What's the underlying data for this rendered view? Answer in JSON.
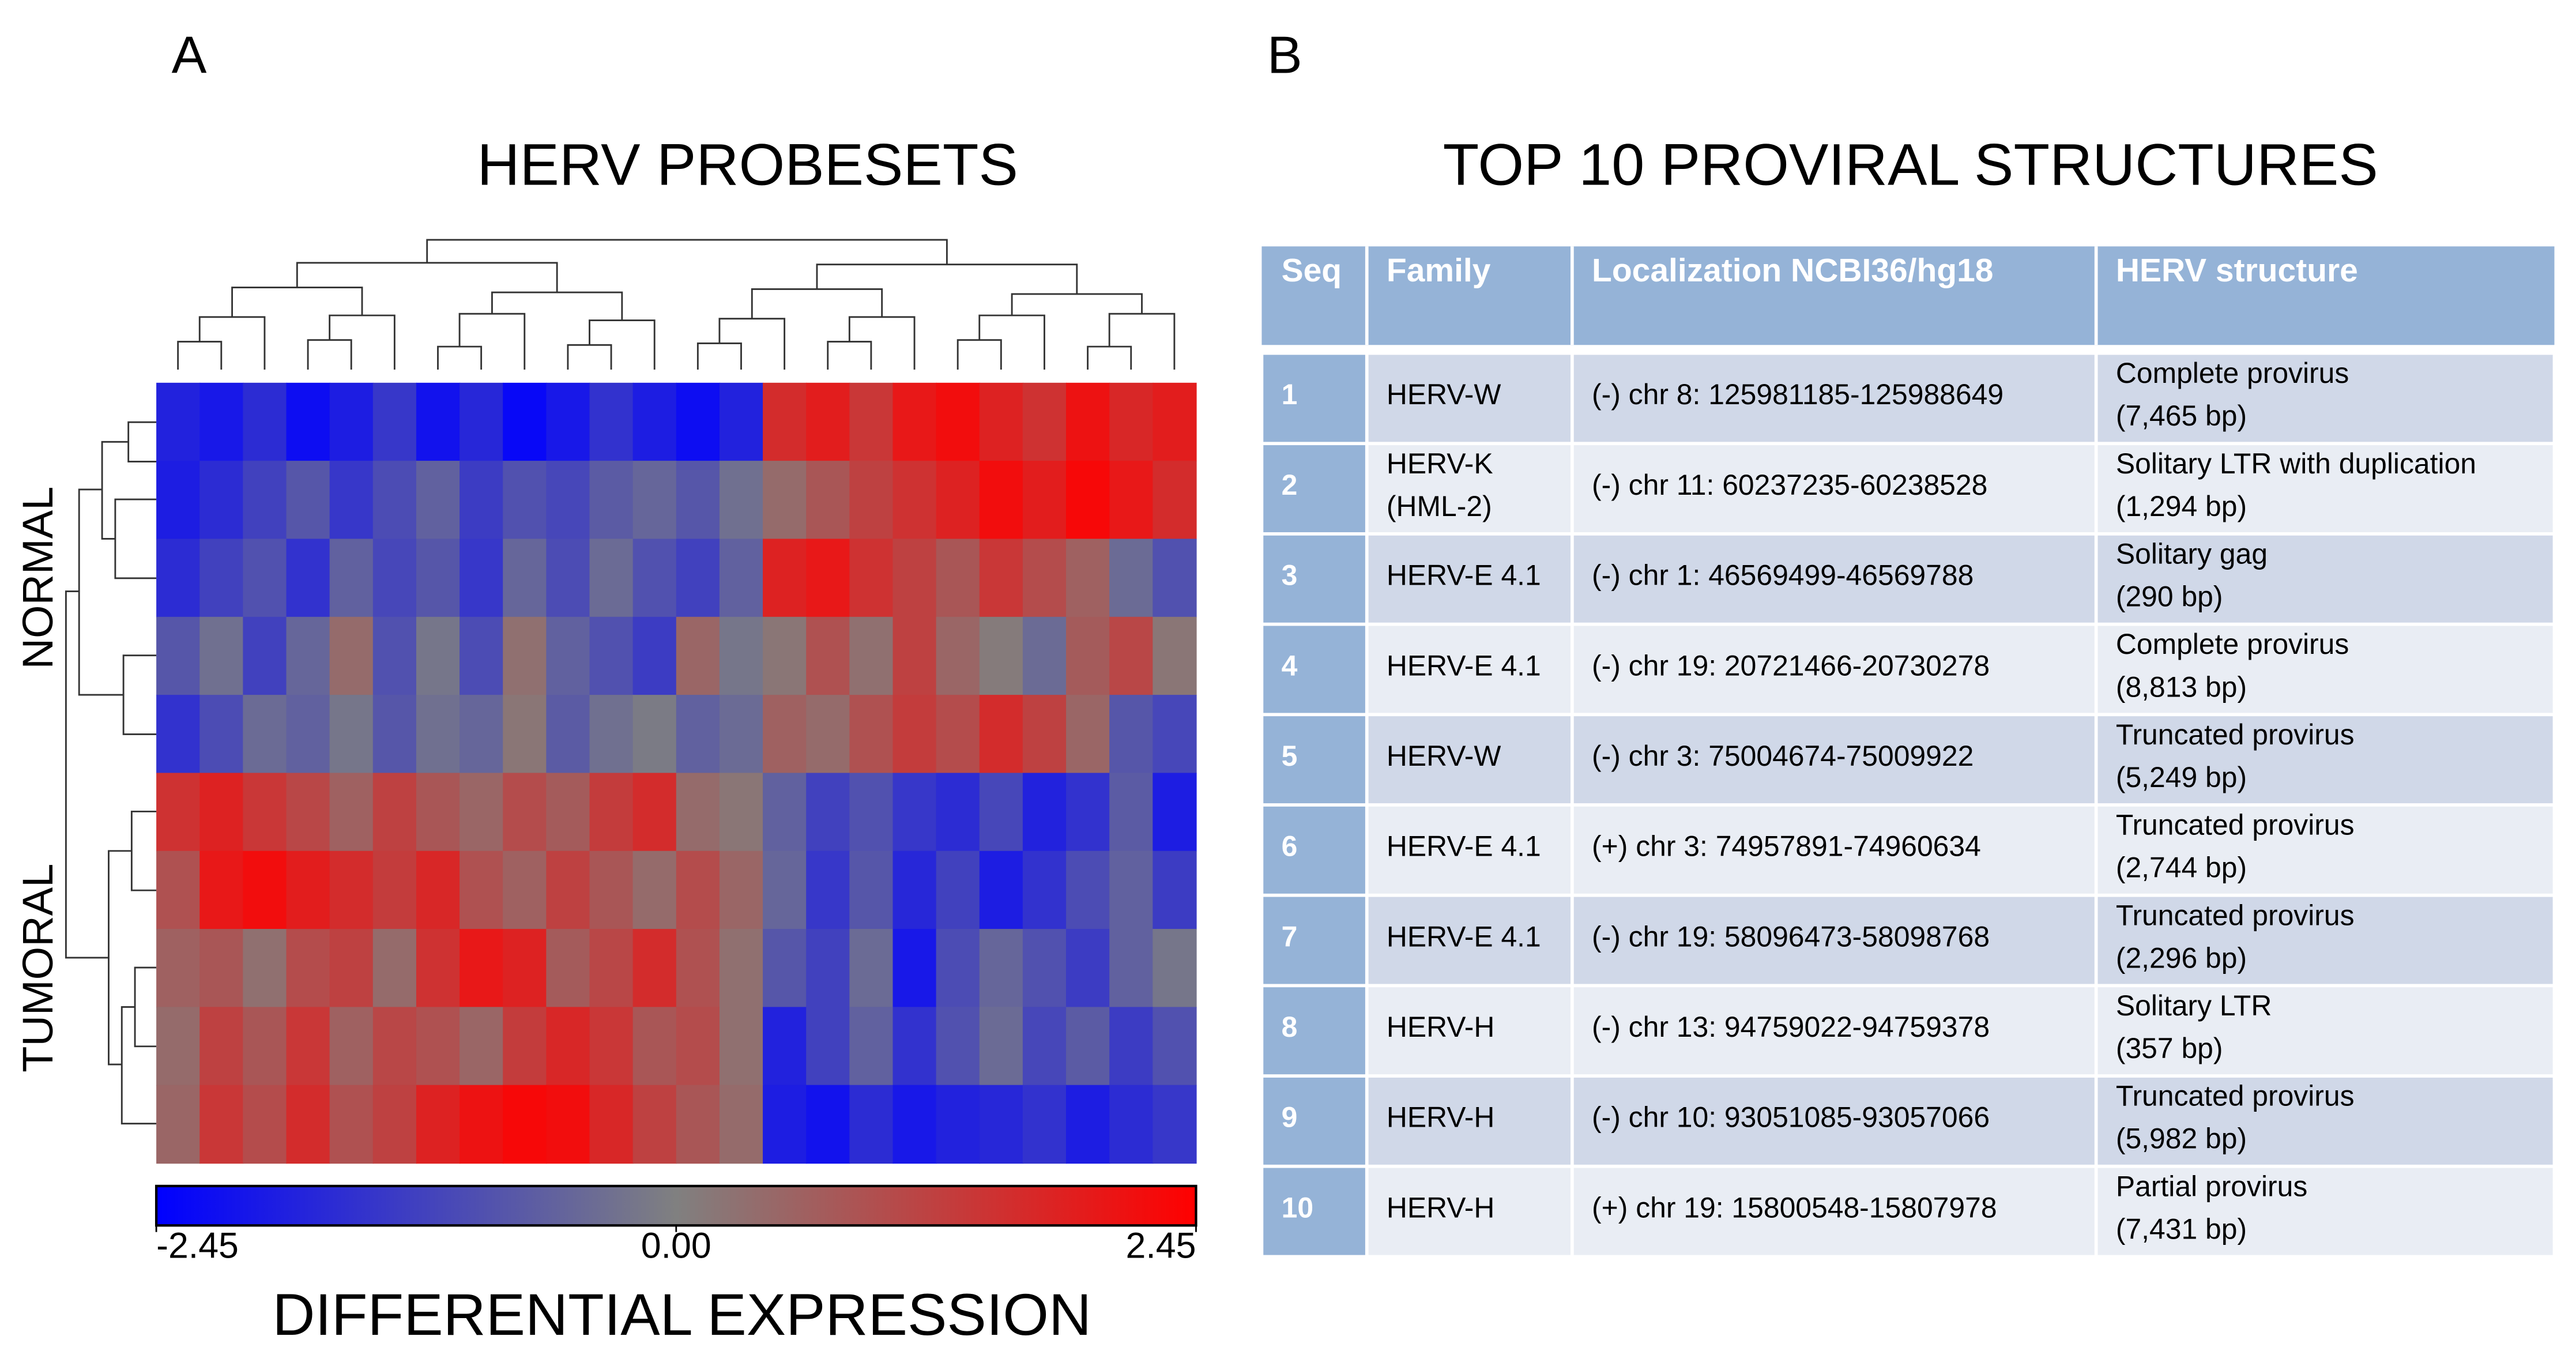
{
  "panels": {
    "a": "A",
    "b": "B"
  },
  "chart_data": {
    "type": "heatmap",
    "title": "HERV PROBESETS",
    "row_groups": [
      "NORMAL",
      "TUMORAL"
    ],
    "values": [
      [
        -1.8,
        -2.0,
        -1.6,
        -2.2,
        -1.9,
        -1.4,
        -2.1,
        -1.7,
        -2.3,
        -2.0,
        -1.5,
        -1.9,
        -2.2,
        -1.8,
        1.6,
        1.9,
        1.4,
        2.0,
        2.2,
        1.8,
        1.5,
        2.1,
        1.7,
        1.9
      ],
      [
        -1.9,
        -1.6,
        -1.2,
        -0.8,
        -1.4,
        -1.0,
        -0.6,
        -1.3,
        -0.9,
        -1.1,
        -0.7,
        -0.5,
        -0.8,
        -0.3,
        0.4,
        0.8,
        1.2,
        1.5,
        1.8,
        2.2,
        1.9,
        2.3,
        2.0,
        1.6
      ],
      [
        -1.6,
        -1.2,
        -0.9,
        -1.5,
        -0.6,
        -1.1,
        -0.8,
        -1.4,
        -0.5,
        -1.0,
        -0.4,
        -0.9,
        -1.2,
        -0.6,
        1.8,
        2.0,
        1.5,
        1.2,
        0.8,
        1.4,
        1.0,
        0.6,
        -0.4,
        -0.9
      ],
      [
        -0.8,
        -0.3,
        -1.2,
        -0.5,
        0.4,
        -0.9,
        -0.2,
        -1.0,
        0.3,
        -0.6,
        -0.9,
        -1.3,
        0.5,
        -0.2,
        0.2,
        0.9,
        0.3,
        1.2,
        0.5,
        0.1,
        -0.4,
        0.7,
        1.1,
        0.2
      ],
      [
        -1.5,
        -1.0,
        -0.4,
        -0.6,
        -0.2,
        -0.8,
        -0.3,
        -0.5,
        0.2,
        -0.7,
        -0.3,
        -0.1,
        -0.6,
        -0.4,
        0.6,
        0.4,
        0.9,
        1.3,
        1.0,
        1.6,
        1.2,
        0.5,
        -0.8,
        -1.1
      ],
      [
        1.5,
        1.8,
        1.4,
        1.1,
        0.6,
        1.2,
        0.8,
        0.5,
        1.0,
        0.7,
        1.3,
        1.6,
        0.4,
        0.2,
        -0.6,
        -1.2,
        -0.9,
        -1.4,
        -1.6,
        -1.1,
        -1.8,
        -1.5,
        -0.7,
        -1.9
      ],
      [
        0.9,
        2.0,
        2.2,
        1.9,
        1.6,
        1.3,
        1.7,
        0.9,
        0.6,
        1.2,
        0.8,
        0.4,
        1.0,
        0.5,
        -0.5,
        -1.4,
        -0.8,
        -1.7,
        -1.2,
        -1.9,
        -1.5,
        -1.0,
        -0.6,
        -1.3
      ],
      [
        0.6,
        0.8,
        0.3,
        1.0,
        1.2,
        0.4,
        1.5,
        2.0,
        1.8,
        0.7,
        1.1,
        1.6,
        0.9,
        0.3,
        -0.8,
        -1.2,
        -0.4,
        -2.0,
        -1.0,
        -0.5,
        -0.9,
        -1.3,
        -0.6,
        -0.2
      ],
      [
        0.4,
        1.2,
        0.8,
        1.4,
        0.6,
        1.1,
        0.9,
        0.5,
        1.3,
        1.7,
        1.4,
        0.8,
        1.0,
        0.3,
        -1.8,
        -1.2,
        -0.6,
        -1.5,
        -0.9,
        -0.4,
        -1.1,
        -0.7,
        -1.3,
        -0.9
      ],
      [
        0.5,
        1.4,
        1.0,
        1.6,
        0.9,
        1.2,
        1.8,
        2.1,
        2.3,
        2.2,
        1.7,
        1.2,
        0.8,
        0.4,
        -1.9,
        -2.1,
        -1.6,
        -2.0,
        -1.8,
        -1.7,
        -1.5,
        -1.9,
        -1.6,
        -1.4
      ]
    ],
    "colorbar": {
      "label": "DIFFERENTIAL EXPRESSION",
      "lim": [
        -2.45,
        2.45
      ],
      "ticks": [
        -2.45,
        {
          "value": 0,
          "label": "0.00"
        },
        2.45
      ],
      "colors": [
        "#0000ff",
        "#808080",
        "#ff0000"
      ]
    }
  },
  "table": {
    "title": "TOP 10 PROVIRAL STRUCTURES",
    "header": [
      "Seq",
      "Family",
      "Localization NCBI36/hg18",
      "HERV structure"
    ],
    "rows": [
      [
        1,
        "HERV-W",
        "(-) chr 8: 125981185-125988649",
        [
          "Complete provirus",
          "(7,465 bp)"
        ]
      ],
      [
        2,
        [
          "HERV-K",
          "(HML-2)"
        ],
        "(-) chr 11: 60237235-60238528",
        [
          "Solitary LTR with duplication",
          "(1,294 bp)"
        ]
      ],
      [
        3,
        "HERV-E 4.1",
        "(-) chr 1: 46569499-46569788",
        [
          "Solitary gag",
          "(290 bp)"
        ]
      ],
      [
        4,
        "HERV-E 4.1",
        "(-) chr 19: 20721466-20730278",
        [
          "Complete provirus",
          "(8,813 bp)"
        ]
      ],
      [
        5,
        "HERV-W",
        "(-) chr 3: 75004674-75009922",
        [
          "Truncated provirus",
          "(5,249 bp)"
        ]
      ],
      [
        6,
        "HERV-E 4.1",
        "(+) chr 3: 74957891-74960634",
        [
          "Truncated provirus",
          "(2,744 bp)"
        ]
      ],
      [
        7,
        "HERV-E 4.1",
        "(-) chr 19: 58096473-58098768",
        [
          "Truncated provirus",
          "(2,296 bp)"
        ]
      ],
      [
        8,
        "HERV-H",
        "(-) chr 13: 94759022-94759378",
        [
          "Solitary LTR",
          "(357 bp)"
        ]
      ],
      [
        9,
        "HERV-H",
        "(-) chr 10: 93051085-93057066",
        [
          "Truncated provirus",
          "(5,982 bp)"
        ]
      ],
      [
        10,
        "HERV-H",
        "(+) chr 19: 15800548-15807978",
        [
          "Partial provirus",
          "(7,431 bp)"
        ]
      ]
    ]
  }
}
